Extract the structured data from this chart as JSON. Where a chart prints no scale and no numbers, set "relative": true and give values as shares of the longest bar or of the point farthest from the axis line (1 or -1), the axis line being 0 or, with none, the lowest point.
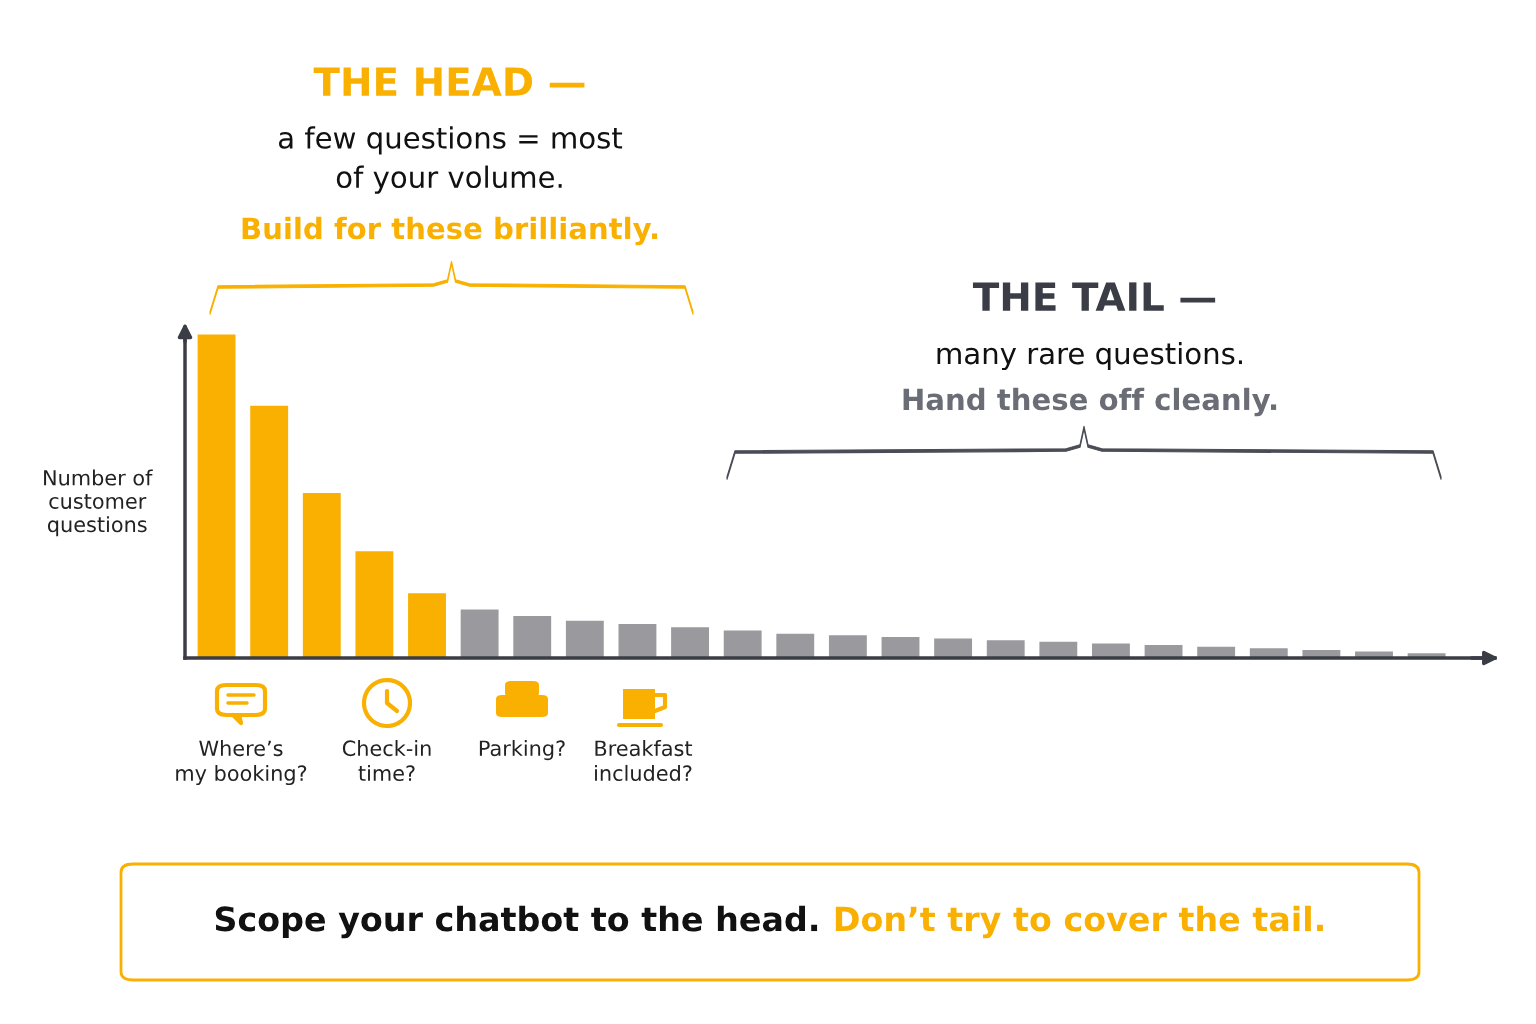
{
  "chart_data": {
    "type": "bar",
    "relative": true,
    "ylabel": "Number of\ncustomer\nquestions",
    "categories": [
      null,
      null,
      null,
      null,
      null,
      null,
      null,
      null,
      null,
      null,
      null,
      null,
      null,
      null,
      null,
      null,
      null,
      null,
      null,
      null,
      null,
      null,
      null,
      null
    ],
    "values": [
      1,
      0.78,
      0.51,
      0.33,
      0.2,
      0.15,
      0.13,
      0.115,
      0.105,
      0.095,
      0.085,
      0.075,
      0.07,
      0.065,
      0.06,
      0.055,
      0.05,
      0.045,
      0.04,
      0.035,
      0.03,
      0.025,
      0.02,
      0.015
    ],
    "colors": [
      "#f9b000",
      "#f9b000",
      "#f9b000",
      "#f9b000",
      "#f9b000",
      "#9a9a9e",
      "#9a9a9e",
      "#9a9a9e",
      "#9a9a9e",
      "#9a9a9e",
      "#9a9a9e",
      "#9a9a9e",
      "#9a9a9e",
      "#9a9a9e",
      "#9a9a9e",
      "#9a9a9e",
      "#9a9a9e",
      "#9a9a9e",
      "#9a9a9e",
      "#9a9a9e",
      "#9a9a9e",
      "#9a9a9e",
      "#9a9a9e",
      "#9a9a9e"
    ],
    "annotations": [
      "THE HEAD —",
      "a few questions = most\nof your volume.",
      "Build for these brilliantly.",
      "THE TAIL —",
      "many rare questions.",
      "Hand these off cleanly.",
      "Scope your chatbot to the head.",
      "Don’t try to cover the tail.",
      "Where’s\nmy booking?",
      "Check-in\ntime?",
      "Parking?",
      "Breakfast\nincluded?"
    ],
    "grid": false,
    "legend": false
  }
}
